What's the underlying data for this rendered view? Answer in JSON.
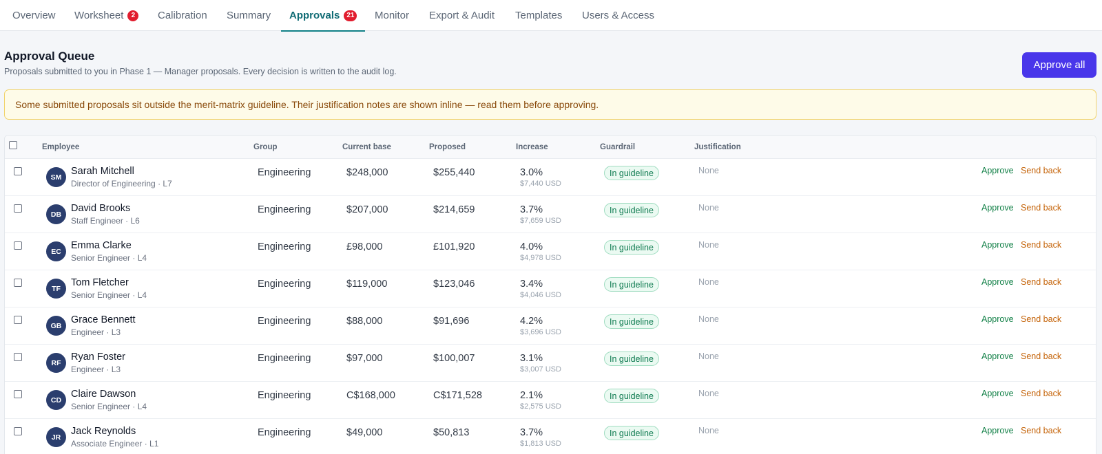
{
  "nav": {
    "tabs": [
      {
        "label": "Overview",
        "badge": null
      },
      {
        "label": "Worksheet",
        "badge": "2"
      },
      {
        "label": "Calibration",
        "badge": null
      },
      {
        "label": "Summary",
        "badge": null
      },
      {
        "label": "Approvals",
        "badge": "21",
        "active": true
      },
      {
        "label": "Monitor",
        "badge": null
      },
      {
        "label": "Export & Audit",
        "badge": null
      },
      {
        "label": "Templates",
        "badge": null
      },
      {
        "label": "Users & Access",
        "badge": null
      }
    ]
  },
  "header": {
    "title": "Approval Queue",
    "subtitle": "Proposals submitted to you in Phase 1 — Manager proposals. Every decision is written to the audit log.",
    "approve_all_label": "Approve all"
  },
  "warning": {
    "text": "Some submitted proposals sit outside the merit-matrix guideline. Their justification notes are shown inline — read them before approving."
  },
  "table": {
    "columns": {
      "employee": "Employee",
      "group": "Group",
      "current_base": "Current base",
      "proposed": "Proposed",
      "increase": "Increase",
      "guardrail": "Guardrail",
      "justification": "Justification"
    },
    "actions": {
      "approve": "Approve",
      "send_back": "Send back"
    },
    "rows": [
      {
        "initials": "SM",
        "name": "Sarah Mitchell",
        "title": "Director of Engineering · L7",
        "group": "Engineering",
        "current": "$248,000",
        "proposed": "$255,440",
        "pct": "3.0%",
        "usd": "$7,440 USD",
        "guardrail": "In guideline",
        "justification": "None"
      },
      {
        "initials": "DB",
        "name": "David Brooks",
        "title": "Staff Engineer · L6",
        "group": "Engineering",
        "current": "$207,000",
        "proposed": "$214,659",
        "pct": "3.7%",
        "usd": "$7,659 USD",
        "guardrail": "In guideline",
        "justification": "None"
      },
      {
        "initials": "EC",
        "name": "Emma Clarke",
        "title": "Senior Engineer · L4",
        "group": "Engineering",
        "current": "£98,000",
        "proposed": "£101,920",
        "pct": "4.0%",
        "usd": "$4,978 USD",
        "guardrail": "In guideline",
        "justification": "None"
      },
      {
        "initials": "TF",
        "name": "Tom Fletcher",
        "title": "Senior Engineer · L4",
        "group": "Engineering",
        "current": "$119,000",
        "proposed": "$123,046",
        "pct": "3.4%",
        "usd": "$4,046 USD",
        "guardrail": "In guideline",
        "justification": "None"
      },
      {
        "initials": "GB",
        "name": "Grace Bennett",
        "title": "Engineer · L3",
        "group": "Engineering",
        "current": "$88,000",
        "proposed": "$91,696",
        "pct": "4.2%",
        "usd": "$3,696 USD",
        "guardrail": "In guideline",
        "justification": "None"
      },
      {
        "initials": "RF",
        "name": "Ryan Foster",
        "title": "Engineer · L3",
        "group": "Engineering",
        "current": "$97,000",
        "proposed": "$100,007",
        "pct": "3.1%",
        "usd": "$3,007 USD",
        "guardrail": "In guideline",
        "justification": "None"
      },
      {
        "initials": "CD",
        "name": "Claire Dawson",
        "title": "Senior Engineer · L4",
        "group": "Engineering",
        "current": "C$168,000",
        "proposed": "C$171,528",
        "pct": "2.1%",
        "usd": "$2,575 USD",
        "guardrail": "In guideline",
        "justification": "None"
      },
      {
        "initials": "JR",
        "name": "Jack Reynolds",
        "title": "Associate Engineer · L1",
        "group": "Engineering",
        "current": "$49,000",
        "proposed": "$50,813",
        "pct": "3.7%",
        "usd": "$1,813 USD",
        "guardrail": "In guideline",
        "justification": "None"
      }
    ]
  },
  "colors": {
    "accent": "#4936ea",
    "active_tab": "#0f6b74",
    "badge": "#e11d2e",
    "approve": "#128047",
    "send_back": "#c46207",
    "avatar": "#2b3e6e",
    "warning_bg": "#fefbe8",
    "warning_border": "#f1d36a"
  }
}
